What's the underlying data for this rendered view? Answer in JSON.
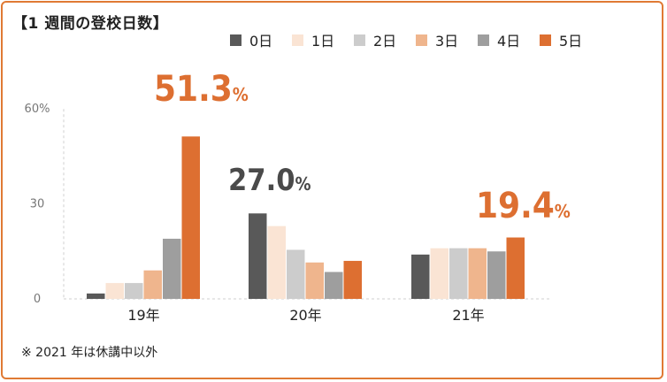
{
  "title": "【1 週間の登校日数】",
  "note": "※ 2021 年は休講中以外",
  "chart_data": {
    "type": "bar",
    "categories": [
      "19年",
      "20年",
      "21年"
    ],
    "series": [
      {
        "name": "0日",
        "color": "#595959",
        "values": [
          1.7,
          27.0,
          14.0
        ]
      },
      {
        "name": "1日",
        "color": "#fae4d4",
        "values": [
          5.0,
          23.0,
          16.0
        ]
      },
      {
        "name": "2日",
        "color": "#cccccc",
        "values": [
          5.0,
          15.5,
          16.0
        ]
      },
      {
        "name": "3日",
        "color": "#efb58d",
        "values": [
          9.0,
          11.5,
          16.0
        ]
      },
      {
        "name": "4日",
        "color": "#9e9e9e",
        "values": [
          19.0,
          8.5,
          15.0
        ]
      },
      {
        "name": "5日",
        "color": "#dd6f31",
        "values": [
          51.3,
          12.0,
          19.4
        ]
      }
    ],
    "yticks": [
      "0",
      "30",
      "60%"
    ],
    "ylim": [
      0,
      60
    ],
    "annotations": [
      {
        "category": "19年",
        "text": "51.3",
        "unit": "%",
        "color": "#dd6f31"
      },
      {
        "category": "20年",
        "text": "27.0",
        "unit": "%",
        "color": "#4a4a4a"
      },
      {
        "category": "21年",
        "text": "19.4",
        "unit": "%",
        "color": "#dd6f31"
      }
    ],
    "legend": "top"
  }
}
